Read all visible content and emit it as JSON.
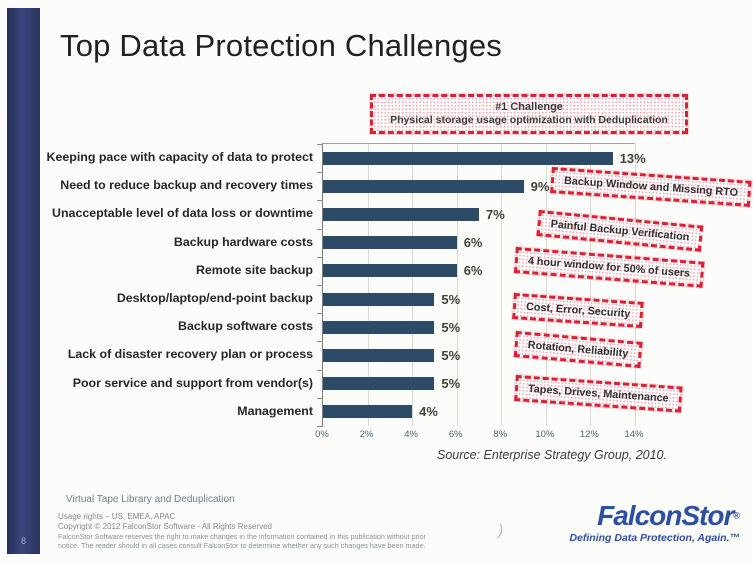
{
  "slide": {
    "title": "Top Data Protection Challenges",
    "page_number": "8",
    "source": "Source: Enterprise Strategy Group, 2010."
  },
  "highlight_box": {
    "line1": "#1 Challenge",
    "line2": "Physical storage usage optimization with Deduplication"
  },
  "chart_data": {
    "type": "bar",
    "orientation": "horizontal",
    "title": "",
    "xlabel": "",
    "ylabel": "",
    "categories": [
      "Keeping pace with capacity of data to protect",
      "Need to reduce backup and recovery times",
      "Unacceptable level of data loss or downtime",
      "Backup hardware costs",
      "Remote site backup",
      "Desktop/laptop/end-point backup",
      "Backup software costs",
      "Lack of disaster recovery plan or process",
      "Poor service and support from vendor(s)",
      "Management"
    ],
    "values": [
      13,
      9,
      7,
      6,
      6,
      5,
      5,
      5,
      5,
      4
    ],
    "value_labels": [
      "13%",
      "9%",
      "7%",
      "6%",
      "6%",
      "5%",
      "5%",
      "5%",
      "5%",
      "4%"
    ],
    "x_ticks": [
      "0%",
      "2%",
      "4%",
      "6%",
      "8%",
      "10%",
      "12%",
      "14%"
    ],
    "xlim": [
      0,
      14
    ],
    "grid": true,
    "legend": "none",
    "bar_color": "#2d4a67"
  },
  "annotations": [
    {
      "label": "Backup Window and Missing RTO"
    },
    {
      "label": "Painful Backup Verification"
    },
    {
      "label": "4 hour window for 50% of users"
    },
    {
      "label": "Cost, Error, Security"
    },
    {
      "label": "Rotation, Reliability"
    },
    {
      "label": "Tapes, Drives, Maintenance"
    }
  ],
  "footer": {
    "doc_title": "Virtual Tape Library and Deduplication",
    "usage_rights": "Usage rights – US, EMEA, APAC",
    "copyright": "Copyright © 2012 FalconStor Software - All Rights Reserved",
    "legal_line1": "FalconStor Software reserves the right to make changes in the information contained in this publication without prior",
    "legal_line2": "notice. The reader should in all cases consult FalconStor to determine whether any such changes have been made.",
    "artifact": ")"
  },
  "logo": {
    "name": "FalconStor",
    "registered": "®",
    "tagline": "Defining Data Protection, Again.™"
  },
  "colors": {
    "bar": "#2d4a67",
    "accent_red": "#dc1f33",
    "navy_sidebar": "#2c3763",
    "logo_blue": "#2d4fa1"
  }
}
